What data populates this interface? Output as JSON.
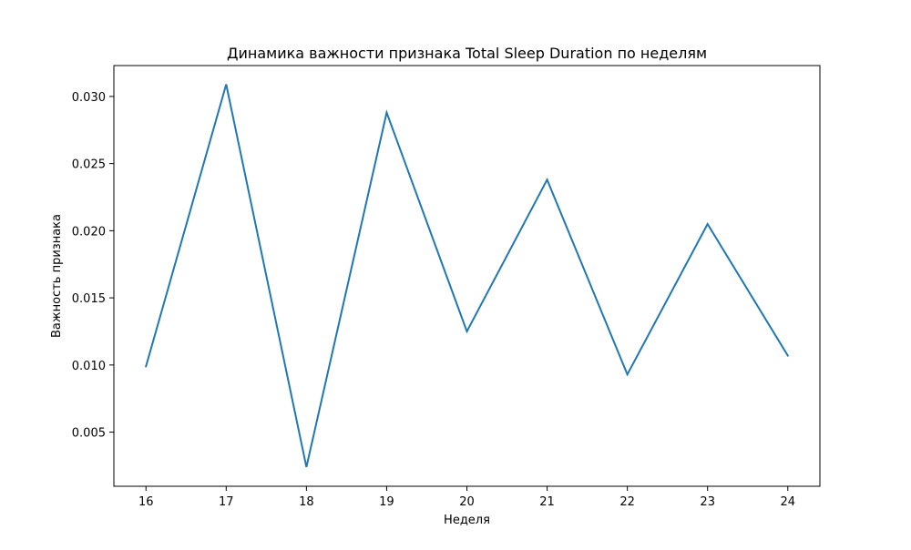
{
  "chart_data": {
    "type": "line",
    "title": "Динамика важности признака Total Sleep Duration по неделям",
    "xlabel": "Неделя",
    "ylabel": "Важность признака",
    "x": [
      16,
      17,
      18,
      19,
      20,
      21,
      22,
      23,
      24
    ],
    "series": [
      {
        "name": "",
        "values": [
          0.0099,
          0.0309,
          0.0024,
          0.0288,
          0.0125,
          0.0238,
          0.0093,
          0.0205,
          0.0107
        ],
        "color": "#1f77b4"
      }
    ],
    "xticks": [
      "16",
      "17",
      "18",
      "19",
      "20",
      "21",
      "22",
      "23",
      "24"
    ],
    "yticks": [
      "0.005",
      "0.010",
      "0.015",
      "0.020",
      "0.025",
      "0.030"
    ],
    "xlim": [
      15.6,
      24.4
    ],
    "ylim": [
      0.00097,
      0.0323
    ],
    "grid": false,
    "legend": false
  }
}
